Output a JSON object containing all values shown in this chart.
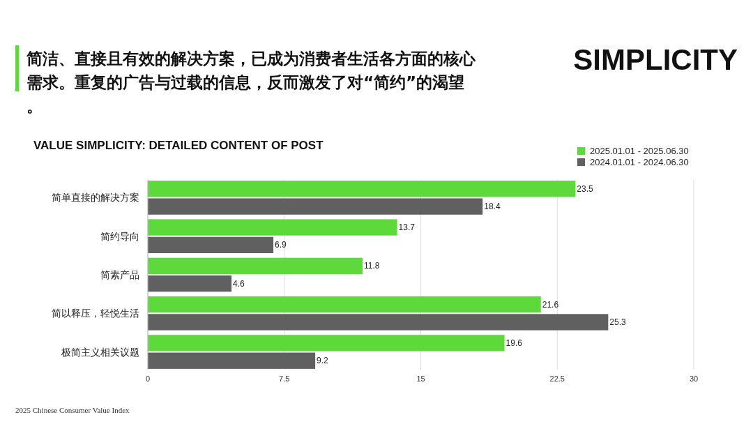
{
  "chart_data": {
    "type": "bar",
    "orientation": "horizontal",
    "title": "VALUE SIMPLICITY: DETAILED CONTENT OF POST",
    "subtitle": "简洁、直接且有效的解决方案，已成为消费者生活各方面的核心需求。重复的广告与过载的信息，反而激发了对“简约”的渴望。",
    "annotations": [
      "SIMPLICITY",
      "2025 Chinese Consumer Value Index"
    ],
    "categories": [
      "简单直接的解决方案",
      "简约导向",
      "简素产品",
      "简以释压，轻悦生活",
      "极简主义相关议题"
    ],
    "series": [
      {
        "name": "2025.01.01 - 2025.06.30",
        "color": "#5dd93c",
        "values": [
          23.5,
          13.7,
          11.8,
          21.6,
          19.6
        ]
      },
      {
        "name": "2024.01.01 - 2024.06.30",
        "color": "#606060",
        "values": [
          18.4,
          6.9,
          4.6,
          25.3,
          9.2
        ]
      }
    ],
    "xlim": [
      0,
      30
    ],
    "xticks": [
      0,
      7.5,
      15,
      22.5,
      30
    ],
    "grid": "x",
    "legend": "top right",
    "data_labels": true
  }
}
